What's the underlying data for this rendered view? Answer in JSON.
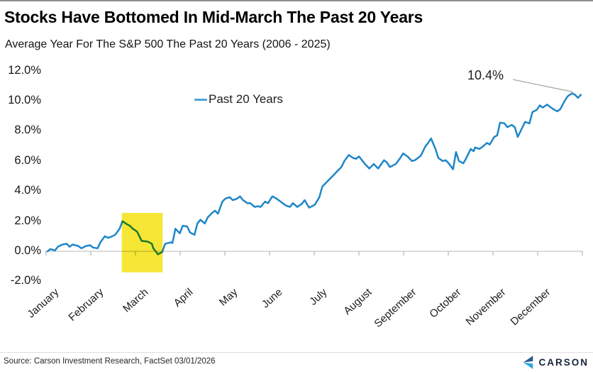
{
  "header": {},
  "colors": {
    "line": "#1e86c8",
    "legend_dash": "#4da3d9",
    "highlight": "#f6e636",
    "axis": "#c7c7c7",
    "tick": "#b5b5b5",
    "leader": "#a8a8a8",
    "logo_navy": "#16243c",
    "logo_mark_dark": "#2b5d8c",
    "logo_mark_light": "#2fa9e0"
  },
  "footer": {
    "source": "Source: Carson Investment Research, FactSet 03/01/2026",
    "logo_text": "CARSON"
  },
  "chart_data": {
    "type": "line",
    "title": "Stocks Have Bottomed In Mid-March The Past 20 Years",
    "subtitle": "Average Year For The S&P 500 The Past 20 Years (2006 - 2025)",
    "xlabel": "",
    "ylabel": "",
    "ylim": [
      -2,
      12
    ],
    "y_tick_values": [
      12,
      10,
      8,
      6,
      4,
      2,
      0,
      -2
    ],
    "y_tick_labels": [
      "12.0%",
      "10.0%",
      "8.0%",
      "6.0%",
      "4.0%",
      "2.0%",
      "0.0%",
      "-2.0%"
    ],
    "categories": [
      "January",
      "February",
      "March",
      "April",
      "May",
      "June",
      "July",
      "August",
      "September",
      "October",
      "November",
      "December"
    ],
    "grid": "none",
    "legend_position": "inside-top-left",
    "end_label": {
      "text": "10.4%",
      "day": 364,
      "value": 10.4
    },
    "highlight_region": {
      "x_start_day": 51.5,
      "x_end_day": 79.3,
      "y_top": 2.55,
      "y_bottom": -1.4,
      "meaning": "mid-February to mid-March pullback"
    },
    "series": [
      {
        "name": "Past 20 Years",
        "x_unit": "day_of_year",
        "y_unit": "percent",
        "points": [
          [
            1,
            0
          ],
          [
            3,
            0.15
          ],
          [
            6,
            0.05
          ],
          [
            8,
            0.3
          ],
          [
            11,
            0.45
          ],
          [
            14,
            0.5
          ],
          [
            16,
            0.3
          ],
          [
            18,
            0.45
          ],
          [
            22,
            0.35
          ],
          [
            24,
            0.2
          ],
          [
            27,
            0.35
          ],
          [
            30,
            0.4
          ],
          [
            32,
            0.25
          ],
          [
            35,
            0.2
          ],
          [
            37,
            0.6
          ],
          [
            40,
            1
          ],
          [
            42,
            0.9
          ],
          [
            44,
            0.95
          ],
          [
            47,
            1.1
          ],
          [
            50,
            1.5
          ],
          [
            52,
            2
          ],
          [
            55,
            1.8
          ],
          [
            57,
            1.7
          ],
          [
            59,
            1.5
          ],
          [
            62,
            1.3
          ],
          [
            65,
            0.7
          ],
          [
            69,
            0.65
          ],
          [
            72,
            0.5
          ],
          [
            73,
            0.2
          ],
          [
            75,
            -0.05
          ],
          [
            76,
            -0.2
          ],
          [
            79,
            -0.05
          ],
          [
            81,
            0.5
          ],
          [
            85,
            0.6
          ],
          [
            86,
            0.55
          ],
          [
            88,
            1.5
          ],
          [
            91,
            1.2
          ],
          [
            93,
            1.7
          ],
          [
            96,
            1.65
          ],
          [
            98,
            1.25
          ],
          [
            101,
            1.1
          ],
          [
            103,
            1.85
          ],
          [
            105,
            2.1
          ],
          [
            108,
            1.85
          ],
          [
            110,
            2.25
          ],
          [
            113,
            2.55
          ],
          [
            115,
            2.7
          ],
          [
            117,
            2.5
          ],
          [
            120,
            3.3
          ],
          [
            122,
            3.5
          ],
          [
            125,
            3.6
          ],
          [
            127,
            3.4
          ],
          [
            130,
            3.5
          ],
          [
            132,
            3.65
          ],
          [
            134,
            3.4
          ],
          [
            137,
            3.2
          ],
          [
            139,
            3.2
          ],
          [
            142,
            2.95
          ],
          [
            144,
            3
          ],
          [
            146,
            2.95
          ],
          [
            149,
            3.3
          ],
          [
            151,
            3.2
          ],
          [
            154,
            3.65
          ],
          [
            156,
            3.55
          ],
          [
            159,
            3.35
          ],
          [
            161,
            3.2
          ],
          [
            163,
            3.05
          ],
          [
            166,
            2.95
          ],
          [
            168,
            3.2
          ],
          [
            171,
            2.95
          ],
          [
            174,
            3.15
          ],
          [
            176,
            3.4
          ],
          [
            179,
            2.9
          ],
          [
            183,
            3.1
          ],
          [
            186,
            3.6
          ],
          [
            188,
            4.3
          ],
          [
            192,
            4.7
          ],
          [
            197,
            5.2
          ],
          [
            201,
            5.6
          ],
          [
            203,
            6
          ],
          [
            206,
            6.4
          ],
          [
            209,
            6.2
          ],
          [
            211,
            6.15
          ],
          [
            213,
            6.3
          ],
          [
            217,
            5.8
          ],
          [
            220,
            5.5
          ],
          [
            223,
            5.8
          ],
          [
            226,
            5.5
          ],
          [
            230,
            6.05
          ],
          [
            232,
            5.9
          ],
          [
            234,
            5.6
          ],
          [
            238,
            5.8
          ],
          [
            241,
            6.2
          ],
          [
            243,
            6.5
          ],
          [
            246,
            6.3
          ],
          [
            249,
            6
          ],
          [
            251,
            6.05
          ],
          [
            255,
            6.35
          ],
          [
            258,
            6.95
          ],
          [
            260,
            7.2
          ],
          [
            262,
            7.5
          ],
          [
            265,
            6.8
          ],
          [
            267,
            6.2
          ],
          [
            270,
            6
          ],
          [
            272,
            6.05
          ],
          [
            274,
            5.85
          ],
          [
            277,
            5.45
          ],
          [
            279,
            6.6
          ],
          [
            281,
            6
          ],
          [
            284,
            5.85
          ],
          [
            286,
            6.2
          ],
          [
            289,
            6.8
          ],
          [
            291,
            6.65
          ],
          [
            292,
            6.9
          ],
          [
            295,
            6.8
          ],
          [
            297,
            6.95
          ],
          [
            300,
            7.2
          ],
          [
            302,
            7.1
          ],
          [
            305,
            7.6
          ],
          [
            307,
            7.7
          ],
          [
            309,
            8.55
          ],
          [
            312,
            8.5
          ],
          [
            314,
            8.25
          ],
          [
            317,
            8.4
          ],
          [
            319,
            8.25
          ],
          [
            321,
            7.6
          ],
          [
            324,
            8.2
          ],
          [
            326,
            8.6
          ],
          [
            329,
            8.5
          ],
          [
            331,
            9.25
          ],
          [
            334,
            9.4
          ],
          [
            336,
            9.7
          ],
          [
            338,
            9.55
          ],
          [
            341,
            9.75
          ],
          [
            343,
            9.6
          ],
          [
            346,
            9.4
          ],
          [
            348,
            9.3
          ],
          [
            350,
            9.45
          ],
          [
            353,
            10
          ],
          [
            355,
            10.3
          ],
          [
            358,
            10.5
          ],
          [
            360,
            10.4
          ],
          [
            362,
            10.2
          ],
          [
            364,
            10.4
          ]
        ]
      }
    ]
  }
}
